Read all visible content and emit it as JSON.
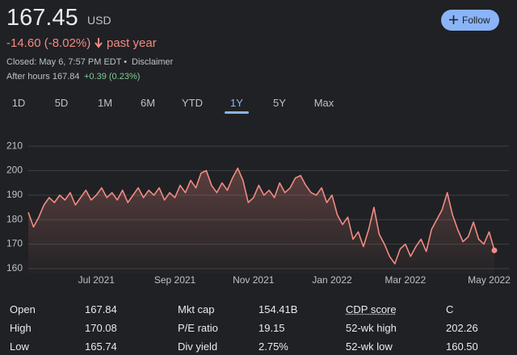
{
  "header": {
    "price": "167.45",
    "currency": "USD",
    "change": "-14.60 (-8.02%)",
    "change_period": "past year",
    "closed": "Closed: May 6, 7:57 PM EDT •",
    "disclaimer": "Disclaimer",
    "after_hours": "After hours 167.84",
    "after_hours_change": "+0.39 (0.23%)",
    "follow": "Follow"
  },
  "tabs": [
    "1D",
    "5D",
    "1M",
    "6M",
    "YTD",
    "1Y",
    "5Y",
    "Max"
  ],
  "selected_tab": 5,
  "chart_data": {
    "type": "line",
    "color": "#f28b82",
    "categories": [
      null,
      null,
      null,
      null,
      null,
      null,
      null,
      null,
      null,
      null,
      null,
      null,
      null,
      "Jul 2021",
      null,
      null,
      null,
      null,
      null,
      null,
      null,
      null,
      null,
      null,
      null,
      null,
      null,
      null,
      "Sep 2021",
      null,
      null,
      null,
      null,
      null,
      null,
      null,
      null,
      null,
      null,
      null,
      null,
      null,
      null,
      "Nov 2021",
      null,
      null,
      null,
      null,
      null,
      null,
      null,
      null,
      null,
      null,
      null,
      null,
      null,
      null,
      "Jan 2022",
      null,
      null,
      null,
      null,
      null,
      null,
      null,
      null,
      null,
      null,
      null,
      null,
      null,
      "Mar 2022",
      null,
      null,
      null,
      null,
      null,
      null,
      null,
      null,
      null,
      null,
      null,
      null,
      null,
      null,
      null,
      "May 2022",
      null
    ],
    "values": [
      183,
      177,
      181,
      186,
      189,
      187,
      190,
      188,
      191,
      186,
      189,
      192,
      188,
      190,
      193,
      189,
      191,
      188,
      192,
      187,
      190,
      193,
      189,
      192,
      190,
      193,
      188,
      191,
      189,
      194,
      191,
      196,
      193,
      199,
      200,
      194,
      191,
      195,
      192,
      197,
      201,
      196,
      187,
      189,
      194,
      190,
      192,
      189,
      195,
      191,
      193,
      197,
      198,
      194,
      191,
      190,
      193,
      187,
      190,
      182,
      178,
      181,
      172,
      175,
      169,
      176,
      185,
      174,
      170,
      165,
      162,
      168,
      170,
      165,
      169,
      172,
      167,
      176,
      180,
      184,
      191,
      182,
      176,
      171,
      173,
      179,
      172,
      170,
      175,
      167.45
    ],
    "ylim": [
      158,
      214
    ],
    "yticks": [
      160,
      170,
      180,
      190,
      200,
      210
    ],
    "grid": true
  },
  "stats": {
    "rows": [
      [
        "Open",
        "167.84",
        "Mkt cap",
        "154.41B",
        "CDP score",
        "C"
      ],
      [
        "High",
        "170.08",
        "P/E ratio",
        "19.15",
        "52-wk high",
        "202.26"
      ],
      [
        "Low",
        "165.74",
        "Div yield",
        "2.75%",
        "52-wk low",
        "160.50"
      ]
    ]
  }
}
